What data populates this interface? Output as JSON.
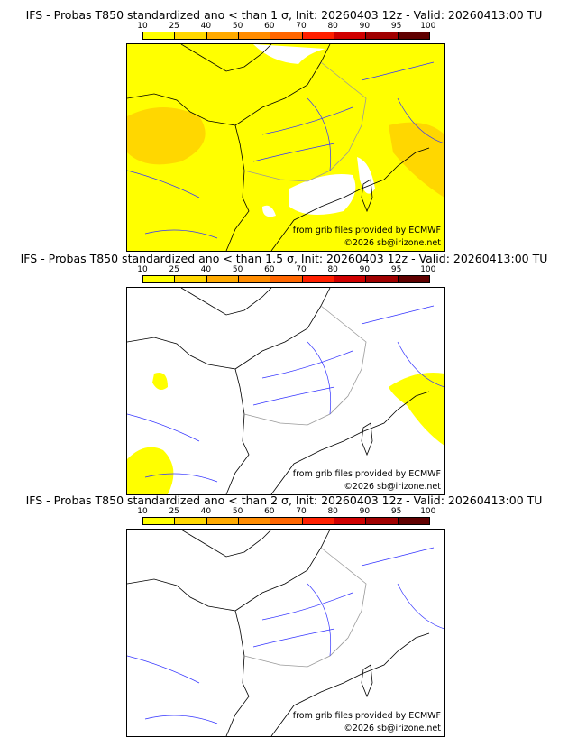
{
  "colorbar": {
    "ticks": [
      "10",
      "25",
      "40",
      "50",
      "60",
      "70",
      "80",
      "90",
      "95",
      "100"
    ],
    "colors": [
      "#ffff00",
      "#ffd700",
      "#ffaa00",
      "#ff8c00",
      "#ff6600",
      "#ff2000",
      "#d00000",
      "#a00000",
      "#600000"
    ]
  },
  "panels": [
    {
      "title": "IFS - Probas T850  standardized ano < than 1 σ, Init: 20260403 12z - Valid: 20260413:00 TU",
      "credit1": "from grib files provided by ECMWF",
      "credit2": "©2026 sb@irizone.net"
    },
    {
      "title": "IFS - Probas T850  standardized ano < than 1.5 σ, Init: 20260403 12z - Valid: 20260413:00 TU",
      "credit1": "from grib files provided by ECMWF",
      "credit2": "©2026 sb@irizone.net"
    },
    {
      "title": "IFS - Probas T850  standardized ano < than 2 σ, Init: 20260403 12z - Valid: 20260413:00 TU",
      "credit1": "from grib files provided by ECMWF",
      "credit2": "©2026 sb@irizone.net"
    }
  ]
}
